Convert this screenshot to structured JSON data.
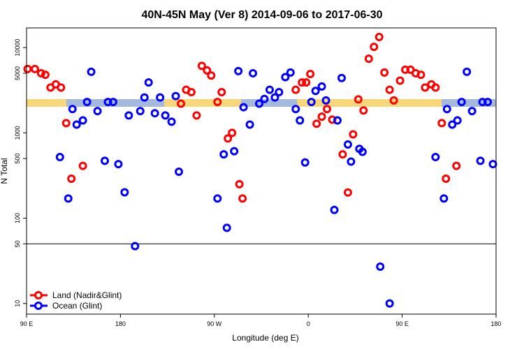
{
  "chart_data": {
    "type": "scatter",
    "title": "40N-45N May (Ver 8)   2014-09-06 to 2017-06-30",
    "x_label": "Longitude (deg E)",
    "y_label": "N Total",
    "xlim": [
      90,
      540
    ],
    "xticks": [
      {
        "value": 90,
        "label": "90 E"
      },
      180,
      {
        "value": 270,
        "label": "90 W"
      },
      {
        "value": 360,
        "label": "0"
      },
      {
        "value": 450,
        "label": "90 E"
      },
      {
        "value": 540,
        "label": "180"
      }
    ],
    "ylim": [
      7.5,
      17000
    ],
    "yticks": [
      10,
      50,
      100,
      500,
      1000,
      5000,
      10000
    ],
    "log_y": true,
    "legend": "bottom-left",
    "series": [
      {
        "name": "Land (Nadir&Glint)",
        "color": "#ff0000",
        "x": [
          91,
          98,
          104,
          108,
          113,
          118,
          123,
          128,
          133,
          144,
          238,
          243,
          248,
          253,
          258,
          263,
          267,
          273,
          277,
          283,
          287,
          294,
          297,
          348,
          354,
          358,
          362,
          368,
          373,
          378,
          383,
          393,
          398,
          403,
          408,
          413,
          418,
          423,
          428,
          433,
          438,
          442,
          448,
          453,
          458,
          463,
          468,
          472,
          478,
          482,
          488,
          492,
          502
        ],
        "values": [
          5600,
          5600,
          5000,
          4800,
          3400,
          3700,
          3400,
          1300,
          290,
          410,
          2200,
          3200,
          3000,
          1600,
          6100,
          5400,
          4700,
          2300,
          3000,
          860,
          1000,
          250,
          170,
          3200,
          3900,
          3900,
          4900,
          1280,
          1550,
          1900,
          1430,
          560,
          200,
          960,
          2470,
          1830,
          7400,
          10200,
          13300,
          5100,
          3200,
          2400,
          4100,
          5500,
          5500,
          5000,
          4800,
          3400,
          3700,
          3400,
          1300,
          290,
          410
        ]
      },
      {
        "name": "Ocean (Glint)",
        "color": "#0000ff",
        "x": [
          122,
          130,
          134,
          138,
          144,
          148,
          152,
          158,
          165,
          168,
          173,
          178,
          184,
          188,
          194,
          199,
          203,
          207,
          213,
          218,
          223,
          229,
          233,
          236,
          273,
          279,
          282,
          289,
          293,
          298,
          304,
          307,
          313,
          318,
          323,
          328,
          332,
          338,
          343,
          348,
          352,
          357,
          363,
          367,
          373,
          377,
          385,
          388,
          392,
          398,
          401,
          409,
          412,
          429,
          438,
          482,
          490,
          493,
          498,
          503,
          507,
          512,
          517,
          525,
          527,
          532,
          537
        ],
        "values": [
          520,
          170,
          1900,
          1250,
          1400,
          2300,
          5200,
          1800,
          470,
          2300,
          2300,
          430,
          201,
          1600,
          47,
          1800,
          2600,
          3900,
          1700,
          2600,
          1600,
          1350,
          2700,
          350,
          170,
          560,
          77,
          610,
          5300,
          2000,
          1250,
          5000,
          2200,
          2500,
          3200,
          2600,
          3000,
          4500,
          5100,
          1900,
          1400,
          450,
          2300,
          3100,
          3500,
          2400,
          125,
          1400,
          4400,
          730,
          460,
          650,
          600,
          27,
          10,
          520,
          170,
          1900,
          1250,
          1400,
          2300,
          5200,
          1800,
          470,
          2300,
          2300,
          430
        ]
      }
    ]
  }
}
